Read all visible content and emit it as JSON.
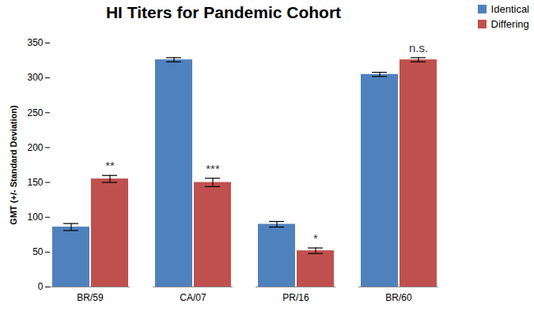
{
  "chart_data": {
    "type": "bar",
    "title": "HI Titers for Pandemic Cohort",
    "y_label": "GMT (+/- Standard Deviation)",
    "categories": [
      "BR/59",
      "CA/07",
      "PR/16",
      "BR/60"
    ],
    "series": [
      {
        "name": "Identical",
        "color": "#4f81bd",
        "values": [
          86,
          326,
          90,
          305
        ],
        "errors": [
          5,
          3,
          4,
          3
        ]
      },
      {
        "name": "Differing",
        "color": "#c0504d",
        "values": [
          155,
          150,
          52,
          326
        ],
        "errors": [
          5,
          6,
          4,
          3
        ],
        "annotations": [
          "**",
          "***",
          "*",
          "n.s."
        ]
      }
    ],
    "ylim": [
      0,
      350
    ],
    "yticks": [
      0,
      50,
      100,
      150,
      200,
      250,
      300,
      350
    ],
    "grid": false,
    "legend": "top-right"
  }
}
